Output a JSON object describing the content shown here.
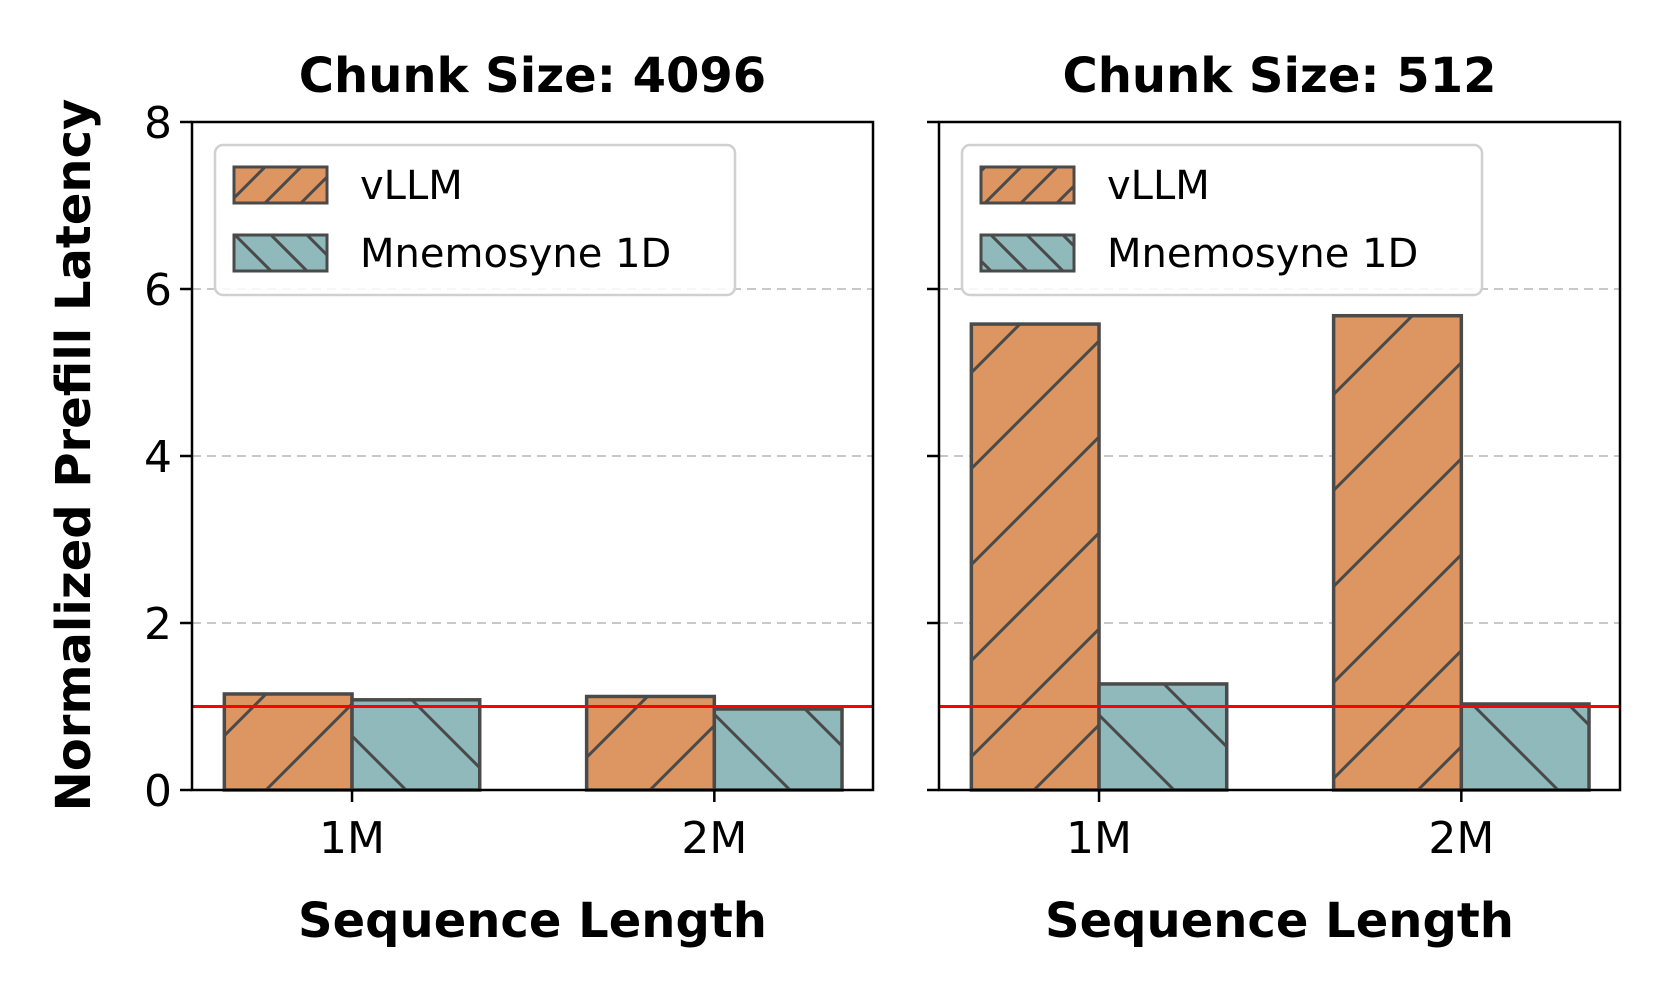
{
  "figure": {
    "ylabel": "Normalized Prefill Latency",
    "colors": {
      "vLLM": "#DD9661",
      "Mnemosyne 1D": "#8FB9BA",
      "edge": "#4a4a4a",
      "baseline": "#ff0000",
      "grid": "#c8c8c8"
    }
  },
  "chart_data": [
    {
      "type": "bar",
      "title": "Chunk Size: 4096",
      "xlabel": "Sequence Length",
      "ylabel": "Normalized Prefill Latency",
      "categories": [
        "1M",
        "2M"
      ],
      "series": [
        {
          "name": "vLLM",
          "values": [
            1.15,
            1.12
          ]
        },
        {
          "name": "Mnemosyne 1D",
          "values": [
            1.08,
            0.97
          ]
        }
      ],
      "ylim": [
        0,
        8
      ],
      "yticks": [
        "0",
        "2",
        "4",
        "6",
        "8"
      ],
      "baseline": 1.0,
      "grid": "y-dashed",
      "legend": "top-left"
    },
    {
      "type": "bar",
      "title": "Chunk Size: 512",
      "xlabel": "Sequence Length",
      "ylabel": "",
      "categories": [
        "1M",
        "2M"
      ],
      "series": [
        {
          "name": "vLLM",
          "values": [
            5.58,
            5.68
          ]
        },
        {
          "name": "Mnemosyne 1D",
          "values": [
            1.27,
            1.03
          ]
        }
      ],
      "ylim": [
        0,
        8
      ],
      "yticks": [
        "0",
        "2",
        "4",
        "6",
        "8"
      ],
      "baseline": 1.0,
      "grid": "y-dashed",
      "legend": "top-left"
    }
  ]
}
